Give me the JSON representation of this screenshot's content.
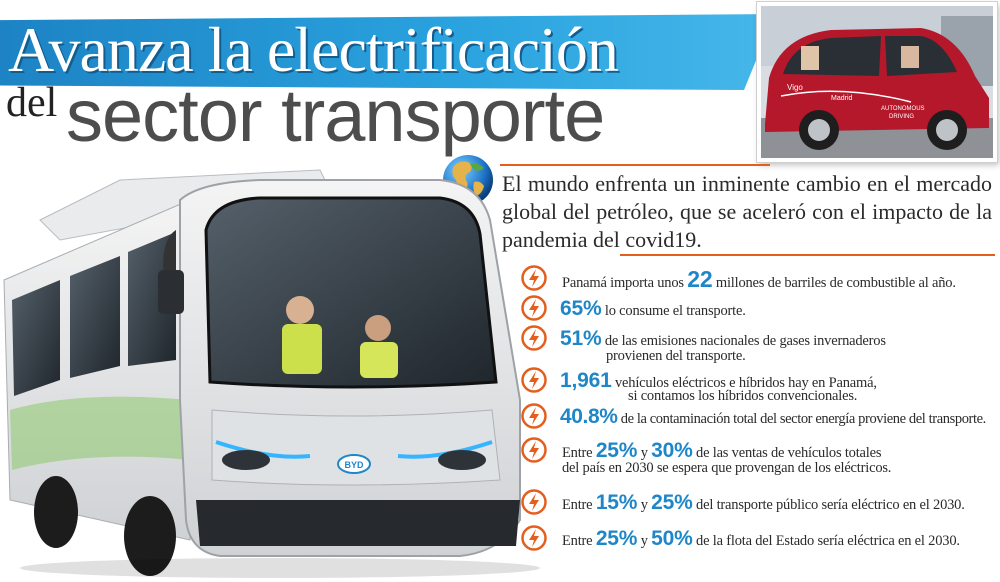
{
  "title": {
    "line1": "Avanza la electrificación",
    "line2_small": "del",
    "line2_big": "sector transporte"
  },
  "photo": {
    "car_text_1": "Vigo",
    "car_text_2": "Madrid",
    "car_text_3": "AUTONOMOUS",
    "car_text_4": "DRIVING",
    "car_color": "#b4182a"
  },
  "intro": {
    "text": "El mundo enfrenta un inminente cambio en el mercado global del petróleo, que se aceleró con el impacto de la pandemia del covid19."
  },
  "bus": {
    "badge": "BYD"
  },
  "colors": {
    "accent_blue": "#1f86c8",
    "accent_orange": "#e35f1e",
    "banner_blue": "#2aa3df"
  },
  "icons": {
    "fact_bullet": "lightning-bolt-icon",
    "intro_bullet": "globe-icon"
  },
  "facts": [
    {
      "pre": "Panamá importa unos ",
      "n1": "22",
      "mid": " millones de barriles de combustible al año."
    },
    {
      "n1": "65%",
      "mid": " lo consume el transporte."
    },
    {
      "n1": "51%",
      "mid": " de las emisiones nacionales de gases invernaderos",
      "line2": "provienen del transporte."
    },
    {
      "n1": "1,961",
      "mid": " vehículos eléctricos e híbridos hay en Panamá,",
      "line2": "si contamos los híbridos convencionales."
    },
    {
      "n1": "40.8%",
      "mid": " de la contaminación total del sector energía proviene del transporte."
    },
    {
      "pre": "Entre ",
      "n1": "25%",
      "join": " y ",
      "n2": "30%",
      "mid": " de las ventas de vehículos totales",
      "line2": "del país en 2030 se espera que provengan de los eléctricos."
    },
    {
      "pre": "Entre ",
      "n1": "15%",
      "join": " y ",
      "n2": "25%",
      "mid": " del transporte público sería eléctrico en el 2030."
    },
    {
      "pre": "Entre ",
      "n1": "25%",
      "join": " y ",
      "n2": "50%",
      "mid": " de la flota del Estado sería eléctrica en el 2030."
    }
  ]
}
